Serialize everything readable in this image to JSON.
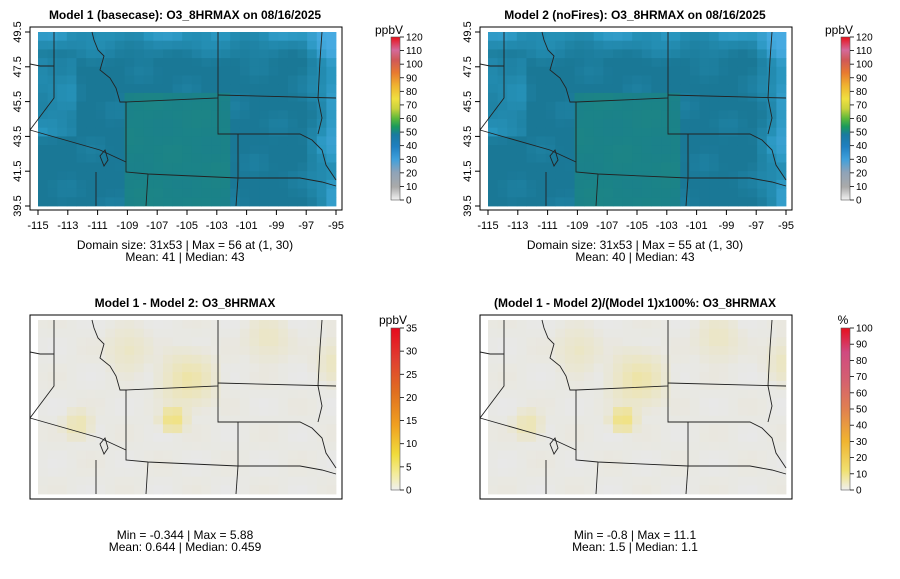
{
  "colors": {
    "frame": "#000000",
    "border_line": "#222222",
    "no_change": "#e6e6e6"
  },
  "chart_data": [
    {
      "type": "heatmap",
      "title": "Model 1 (basecase): O3_8HRMAX on 08/16/2025",
      "x_ticks": [
        "-115",
        "-113",
        "-111",
        "-109",
        "-107",
        "-105",
        "-103",
        "-101",
        "-99",
        "-97",
        "-95"
      ],
      "y_ticks": [
        "39.5",
        "41.5",
        "43.5",
        "45.5",
        "47.5",
        "49.5"
      ],
      "xlim": [
        -115,
        -95
      ],
      "ylim": [
        39.5,
        49.5
      ],
      "colorbar_unit": "ppbV",
      "colorbar_ticks": [
        "0",
        "10",
        "20",
        "30",
        "40",
        "50",
        "60",
        "70",
        "80",
        "90",
        "100",
        "110",
        "120"
      ],
      "colorbar_range": [
        0,
        120
      ],
      "stats_line1": "Domain size: 31x53 | Max = 56 at (1, 30)",
      "stats_line2": "Mean: 41 |  Median: 43",
      "domain": "Domain size: 31x53",
      "max": 56,
      "mean": 41,
      "median": 43
    },
    {
      "type": "heatmap",
      "title": "Model 2 (noFires): O3_8HRMAX on 08/16/2025",
      "x_ticks": [
        "-115",
        "-113",
        "-111",
        "-109",
        "-107",
        "-105",
        "-103",
        "-101",
        "-99",
        "-97",
        "-95"
      ],
      "y_ticks": [
        "39.5",
        "41.5",
        "43.5",
        "45.5",
        "47.5",
        "49.5"
      ],
      "xlim": [
        -115,
        -95
      ],
      "ylim": [
        39.5,
        49.5
      ],
      "colorbar_unit": "ppbV",
      "colorbar_ticks": [
        "0",
        "10",
        "20",
        "30",
        "40",
        "50",
        "60",
        "70",
        "80",
        "90",
        "100",
        "110",
        "120"
      ],
      "colorbar_range": [
        0,
        120
      ],
      "stats_line1": "Domain size: 31x53 | Max = 55 at (1, 30)",
      "stats_line2": "Mean: 40 |  Median: 43",
      "max": 55,
      "mean": 40,
      "median": 43
    },
    {
      "type": "heatmap",
      "title": "Model 1 - Model 2: O3_8HRMAX",
      "colorbar_unit": "ppbV",
      "colorbar_ticks": [
        "0",
        "5",
        "10",
        "15",
        "20",
        "25",
        "30",
        "35"
      ],
      "colorbar_range": [
        0,
        35
      ],
      "stats_line1": "Min = -0.344 | Max = 5.88",
      "stats_line2": "Mean: 0.644 |  Median: 0.459",
      "min": -0.344,
      "max": 5.88,
      "mean": 0.644,
      "median": 0.459
    },
    {
      "type": "heatmap",
      "title": "(Model 1 - Model 2)/(Model 1)x100%: O3_8HRMAX",
      "colorbar_unit": "%",
      "colorbar_ticks": [
        "0",
        "10",
        "20",
        "30",
        "40",
        "50",
        "60",
        "70",
        "80",
        "90",
        "100"
      ],
      "colorbar_range": [
        0,
        100
      ],
      "stats_line1": "Min = -0.8 | Max = 11.1",
      "stats_line2": "Mean: 1.5 |  Median: 1.1",
      "min": -0.8,
      "max": 11.1,
      "mean": 1.5,
      "median": 1.1
    }
  ]
}
